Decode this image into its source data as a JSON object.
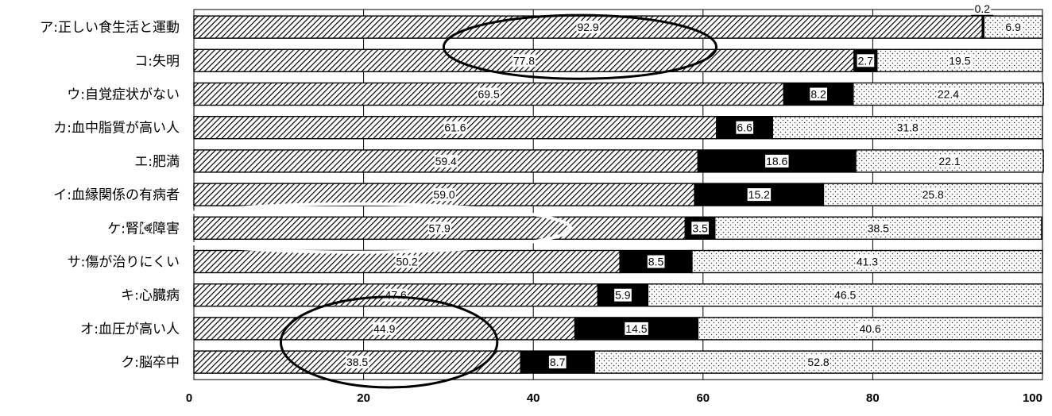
{
  "chart_data": {
    "type": "bar",
    "orientation": "horizontal",
    "stacked": true,
    "categories": [
      "ア:正しい食生活と運動",
      "コ:失明",
      "ウ:自覚症状がない",
      "カ:血中脂質が高い人",
      "エ:肥満",
      "イ:血縁関係の有病者",
      "ケ:腎臓障害",
      "サ:傷が治りにくい",
      "キ:心臓病",
      "オ:血圧が高い人",
      "ク:脳卒中"
    ],
    "series": [
      {
        "values": [
          92.9,
          77.8,
          69.5,
          61.6,
          59.4,
          59.0,
          57.9,
          50.2,
          47.6,
          44.9,
          38.5
        ],
        "labels": [
          "92.9",
          "77.8",
          "69.5",
          "61.6",
          "59.4",
          "59.0",
          "57.9",
          "50.2",
          "47.6",
          "44.9",
          "38.5"
        ],
        "pattern": "diagonal-hatch"
      },
      {
        "values": [
          0.2,
          2.7,
          8.2,
          6.6,
          18.6,
          15.2,
          3.5,
          8.5,
          5.9,
          14.5,
          8.7
        ],
        "labels": [
          "0.2",
          "2.7",
          "8.2",
          "6.6",
          "18.6",
          "15.2",
          "3.5",
          "8.5",
          "5.9",
          "14.5",
          "8.7"
        ],
        "pattern": "solid-black"
      },
      {
        "values": [
          6.9,
          19.5,
          22.4,
          31.8,
          22.1,
          25.8,
          38.5,
          41.3,
          46.5,
          40.6,
          52.8
        ],
        "labels": [
          "6.9",
          "19.5",
          "22.4",
          "31.8",
          "22.1",
          "25.8",
          "38.5",
          "41.3",
          "46.5",
          "40.6",
          "52.8"
        ],
        "pattern": "dotted"
      }
    ],
    "x_ticks": [
      "0",
      "20",
      "40",
      "60",
      "80",
      "100"
    ],
    "xlim": [
      0,
      100
    ],
    "grid": true,
    "legend": "none",
    "annotations": [
      {
        "type": "ellipse",
        "color": "black",
        "covers": "コ:失明 bar, 77.8 label"
      },
      {
        "type": "ellipse",
        "color": "white",
        "covers": "ケ:腎臓障害 category and bar"
      },
      {
        "type": "ellipse",
        "color": "black",
        "covers": "オ:血圧が高い人 and ク:脳卒中 bars"
      }
    ]
  }
}
